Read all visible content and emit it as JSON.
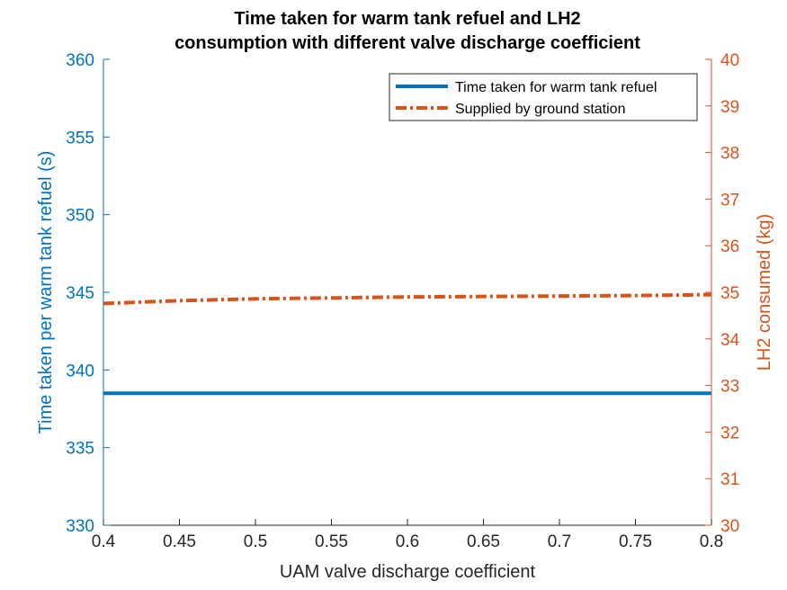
{
  "chart_data": {
    "type": "line",
    "title": [
      "Time taken for warm tank refuel and LH2",
      "consumption with different valve discharge coefficient"
    ],
    "xlabel": "UAM valve discharge coefficient",
    "ylabel_left": "Time taken per warm tank refuel (s)",
    "ylabel_right": "LH2 consumed (kg)",
    "xlim": [
      0.4,
      0.8
    ],
    "ylim_left": [
      330,
      360
    ],
    "ylim_right": [
      30,
      40
    ],
    "x_ticks": [
      "0.4",
      "0.45",
      "0.5",
      "0.55",
      "0.6",
      "0.65",
      "0.7",
      "0.75",
      "0.8"
    ],
    "y_left_ticks": [
      "330",
      "335",
      "340",
      "345",
      "350",
      "355",
      "360"
    ],
    "y_right_ticks": [
      "30",
      "31",
      "32",
      "33",
      "34",
      "35",
      "36",
      "37",
      "38",
      "39",
      "40"
    ],
    "grid": false,
    "legend_position": "top-right",
    "series": [
      {
        "name": "Time taken for warm tank refuel",
        "axis": "left",
        "style": "solid",
        "color": "#0072BD",
        "x": [
          0.4,
          0.45,
          0.5,
          0.55,
          0.6,
          0.65,
          0.7,
          0.75,
          0.8
        ],
        "values": [
          338.5,
          338.5,
          338.5,
          338.5,
          338.5,
          338.5,
          338.5,
          338.5,
          338.5
        ]
      },
      {
        "name": "Supplied by ground station",
        "axis": "right",
        "style": "dashdot",
        "color": "#D95319",
        "x": [
          0.4,
          0.45,
          0.5,
          0.55,
          0.6,
          0.65,
          0.7,
          0.75,
          0.8
        ],
        "values": [
          34.76,
          34.82,
          34.86,
          34.88,
          34.9,
          34.91,
          34.92,
          34.93,
          34.95
        ]
      }
    ]
  }
}
